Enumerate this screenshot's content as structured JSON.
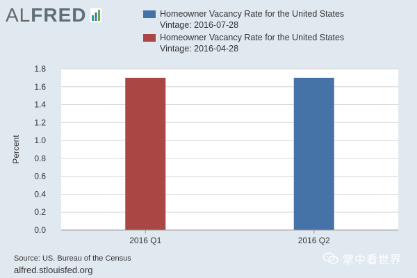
{
  "logo": {
    "text_a": "AL",
    "text_b": "FRED"
  },
  "legend": [
    {
      "line1": "Homeowner Vacancy Rate for the United States",
      "line2": "Vintage: 2016-07-28",
      "color": "#4572a7"
    },
    {
      "line1": "Homeowner Vacancy Rate for the United States",
      "line2": "Vintage: 2016-04-28",
      "color": "#aa4643"
    }
  ],
  "chart_data": {
    "type": "bar",
    "categories": [
      "2016 Q1",
      "2016 Q2"
    ],
    "series": [
      {
        "name": "Homeowner Vacancy Rate for the United States Vintage: 2016-04-28",
        "color": "#aa4643",
        "values": [
          1.7,
          null
        ]
      },
      {
        "name": "Homeowner Vacancy Rate for the United States Vintage: 2016-07-28",
        "color": "#4572a7",
        "values": [
          null,
          1.7
        ]
      }
    ],
    "ylabel": "Percent",
    "ylim": [
      0,
      1.8
    ],
    "yticks": [
      "0.0",
      "0.2",
      "0.4",
      "0.6",
      "0.8",
      "1.0",
      "1.2",
      "1.4",
      "1.6",
      "1.8"
    ],
    "grid": true,
    "legend_position": "top"
  },
  "footer": {
    "source": "Source: US. Bureau of the Census",
    "url": "alfred.stlouisfed.org"
  },
  "watermark": "掌中看世界"
}
